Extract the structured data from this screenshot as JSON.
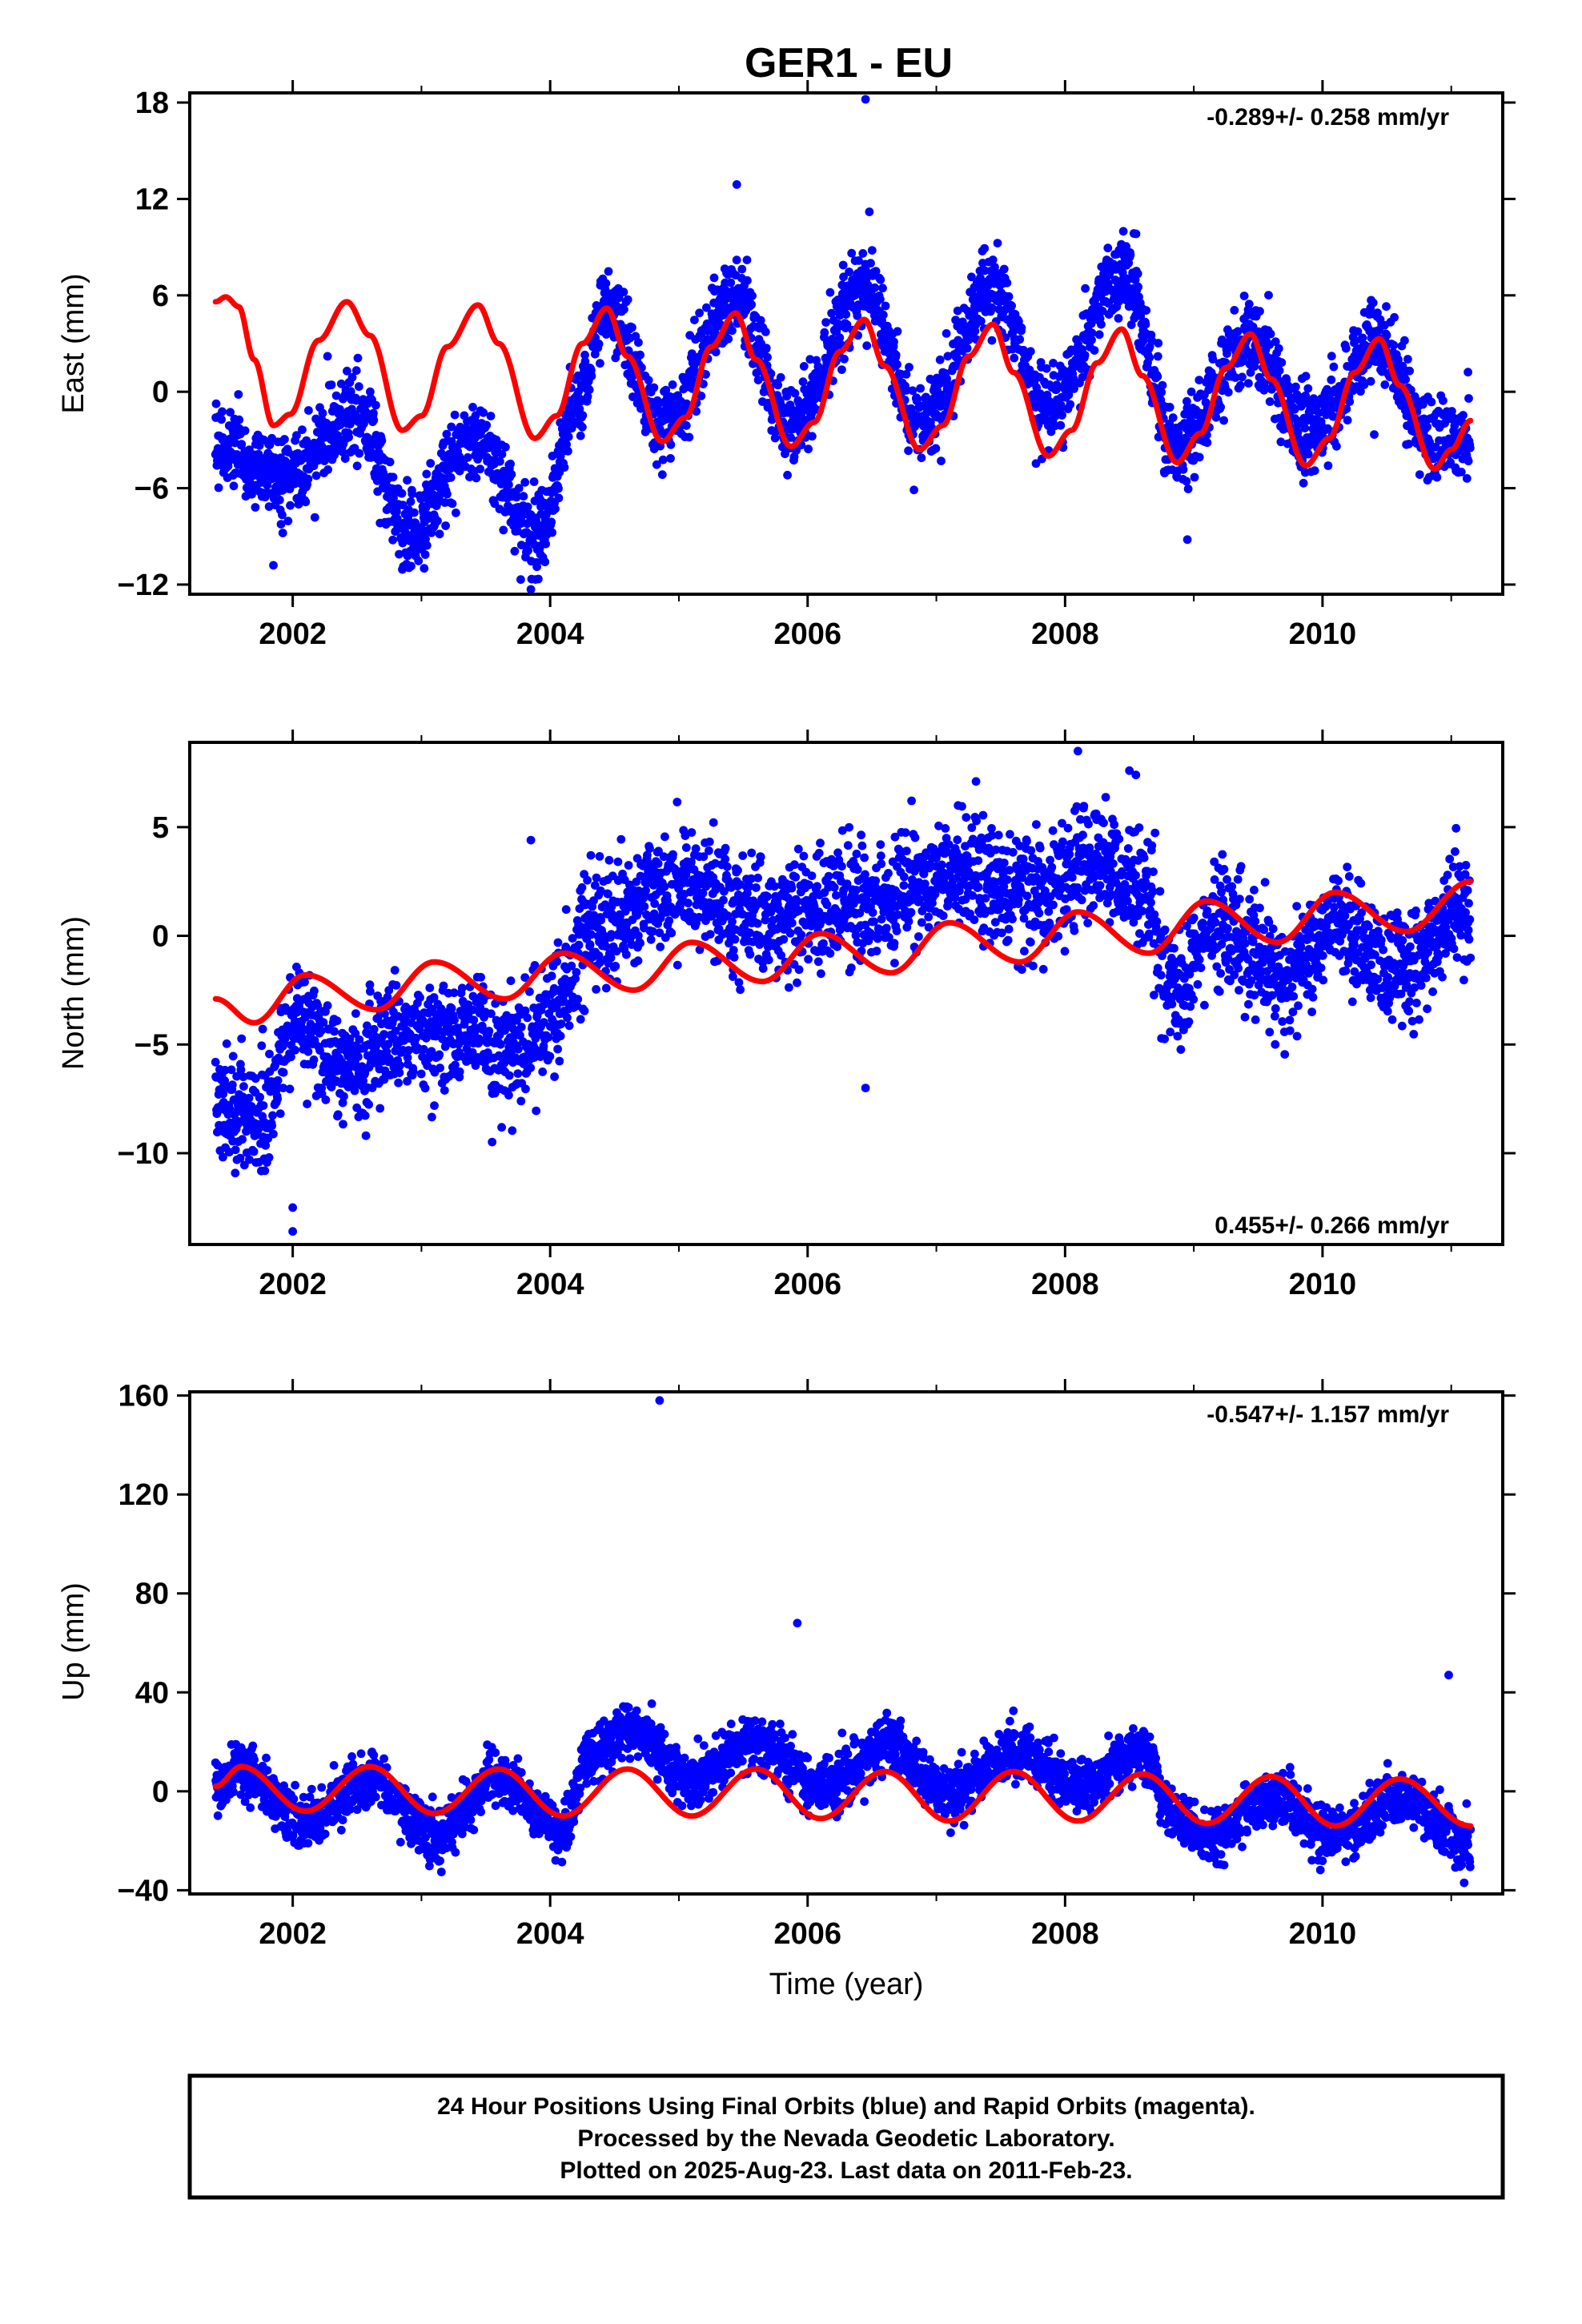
{
  "figure": {
    "title": "GER1 - EU",
    "footer": [
      "24 Hour Positions Using Final Orbits (blue) and Rapid Orbits (magenta).",
      "Processed by the Nevada Geodetic Laboratory.",
      "Plotted on 2025-Aug-23. Last data on 2011-Feb-23."
    ]
  },
  "colors": {
    "points": "#0000ff",
    "model": "#ff0000",
    "axes": "#000000"
  },
  "chart_data": [
    {
      "type": "scatter",
      "component": "east",
      "ylabel": "East (mm)",
      "xlabel": "",
      "rate_label": "-0.289+/- 0.258 mm/yr",
      "rate_position": "top-right",
      "xlim": [
        2001.2,
        2011.4
      ],
      "ylim": [
        -12.6,
        18.6
      ],
      "xticks": [
        2002,
        2004,
        2006,
        2008,
        2010
      ],
      "yticks": [
        -12,
        -6,
        0,
        6,
        12,
        18
      ],
      "data_range": [
        2001.4,
        2011.15
      ],
      "model": {
        "knots": [
          [
            2001.4,
            5.6
          ],
          [
            2001.48,
            5.9
          ],
          [
            2001.58,
            5.3
          ],
          [
            2001.7,
            2.0
          ],
          [
            2001.85,
            -2.1
          ],
          [
            2001.98,
            -1.4
          ],
          [
            2002.2,
            3.2
          ],
          [
            2002.42,
            5.6
          ],
          [
            2002.6,
            3.5
          ],
          [
            2002.85,
            -2.4
          ],
          [
            2003.0,
            -1.5
          ],
          [
            2003.2,
            2.8
          ],
          [
            2003.44,
            5.4
          ],
          [
            2003.6,
            3.0
          ],
          [
            2003.88,
            -2.9
          ],
          [
            2004.05,
            -1.5
          ],
          [
            2004.25,
            3.0
          ],
          [
            2004.44,
            5.2
          ],
          [
            2004.6,
            2.2
          ],
          [
            2004.87,
            -3.1
          ],
          [
            2005.05,
            -1.6
          ],
          [
            2005.25,
            2.8
          ],
          [
            2005.44,
            4.9
          ],
          [
            2005.6,
            2.0
          ],
          [
            2005.87,
            -3.4
          ],
          [
            2006.05,
            -1.9
          ],
          [
            2006.25,
            2.5
          ],
          [
            2006.44,
            4.5
          ],
          [
            2006.6,
            1.6
          ],
          [
            2006.87,
            -3.6
          ],
          [
            2007.05,
            -2.1
          ],
          [
            2007.25,
            2.2
          ],
          [
            2007.44,
            4.2
          ],
          [
            2007.6,
            1.2
          ],
          [
            2007.87,
            -4.0
          ],
          [
            2008.05,
            -2.4
          ],
          [
            2008.25,
            1.8
          ],
          [
            2008.44,
            3.9
          ],
          [
            2008.6,
            1.0
          ],
          [
            2008.87,
            -4.4
          ],
          [
            2009.05,
            -2.6
          ],
          [
            2009.25,
            1.5
          ],
          [
            2009.44,
            3.6
          ],
          [
            2009.6,
            0.8
          ],
          [
            2009.87,
            -4.6
          ],
          [
            2010.05,
            -2.9
          ],
          [
            2010.25,
            1.2
          ],
          [
            2010.44,
            3.3
          ],
          [
            2010.6,
            0.4
          ],
          [
            2010.87,
            -4.8
          ],
          [
            2011.0,
            -3.6
          ],
          [
            2011.15,
            -1.8
          ]
        ]
      },
      "trend": {
        "knots": [
          [
            2001.4,
            -3.5
          ],
          [
            2001.9,
            -5.5
          ],
          [
            2002.5,
            -1.5
          ],
          [
            2002.9,
            -8.5
          ],
          [
            2003.4,
            -3.0
          ],
          [
            2003.9,
            -9.0
          ],
          [
            2004.2,
            -1.0
          ],
          [
            2004.44,
            5.2
          ],
          [
            2004.87,
            -2.0
          ],
          [
            2005.44,
            5.5
          ],
          [
            2005.87,
            -2.2
          ],
          [
            2006.44,
            6.5
          ],
          [
            2006.87,
            -2.0
          ],
          [
            2007.44,
            6.3
          ],
          [
            2007.87,
            -1.0
          ],
          [
            2008.44,
            7.5
          ],
          [
            2008.87,
            -3.2
          ],
          [
            2009.44,
            3.3
          ],
          [
            2009.87,
            -2.6
          ],
          [
            2010.44,
            2.8
          ],
          [
            2010.87,
            -3.3
          ],
          [
            2011.15,
            -2.6
          ]
        ],
        "scatter_sd": 1.25
      },
      "outliers": [
        [
          2006.45,
          18.2
        ],
        [
          2005.45,
          12.9
        ],
        [
          2006.48,
          11.2
        ],
        [
          2003.85,
          -12.3
        ],
        [
          2008.95,
          -9.2
        ],
        [
          2001.85,
          -10.8
        ]
      ]
    },
    {
      "type": "scatter",
      "component": "north",
      "ylabel": "North (mm)",
      "xlabel": "",
      "rate_label": "0.455+/- 0.266 mm/yr",
      "rate_position": "bottom-right",
      "xlim": [
        2001.2,
        2011.4
      ],
      "ylim": [
        -14.2,
        8.9
      ],
      "xticks": [
        2002,
        2004,
        2006,
        2008,
        2010
      ],
      "yticks": [
        -10,
        -5,
        0,
        5
      ],
      "data_range": [
        2001.4,
        2011.15
      ],
      "model": {
        "knots": [
          [
            2001.4,
            -2.9
          ],
          [
            2001.7,
            -4.0
          ],
          [
            2002.1,
            -1.8
          ],
          [
            2002.65,
            -3.4
          ],
          [
            2003.1,
            -1.2
          ],
          [
            2003.65,
            -2.9
          ],
          [
            2004.1,
            -0.8
          ],
          [
            2004.65,
            -2.5
          ],
          [
            2005.1,
            -0.3
          ],
          [
            2005.65,
            -2.1
          ],
          [
            2006.1,
            0.1
          ],
          [
            2006.65,
            -1.7
          ],
          [
            2007.1,
            0.6
          ],
          [
            2007.65,
            -1.2
          ],
          [
            2008.1,
            1.1
          ],
          [
            2008.65,
            -0.8
          ],
          [
            2009.1,
            1.6
          ],
          [
            2009.65,
            -0.3
          ],
          [
            2010.1,
            2.0
          ],
          [
            2010.65,
            0.2
          ],
          [
            2011.15,
            2.5
          ]
        ]
      },
      "trend": {
        "knots": [
          [
            2001.4,
            -8.0
          ],
          [
            2001.75,
            -8.5
          ],
          [
            2002.0,
            -4.0
          ],
          [
            2002.5,
            -6.0
          ],
          [
            2002.8,
            -4.5
          ],
          [
            2003.3,
            -4.5
          ],
          [
            2003.7,
            -5.5
          ],
          [
            2004.1,
            -3.0
          ],
          [
            2004.3,
            0.5
          ],
          [
            2005.0,
            2.2
          ],
          [
            2005.7,
            1.0
          ],
          [
            2006.5,
            1.5
          ],
          [
            2007.2,
            3.0
          ],
          [
            2007.7,
            2.0
          ],
          [
            2008.2,
            3.5
          ],
          [
            2008.6,
            2.5
          ],
          [
            2008.85,
            -2.5
          ],
          [
            2009.2,
            0.5
          ],
          [
            2009.7,
            -2.0
          ],
          [
            2010.1,
            0.5
          ],
          [
            2010.6,
            -1.5
          ],
          [
            2011.15,
            1.5
          ]
        ],
        "scatter_sd": 1.3
      },
      "outliers": [
        [
          2002.0,
          -13.6
        ],
        [
          2002.0,
          -12.5
        ],
        [
          2008.1,
          8.5
        ],
        [
          2008.55,
          7.4
        ],
        [
          2006.45,
          -7.0
        ],
        [
          2003.85,
          4.4
        ],
        [
          2008.5,
          7.6
        ]
      ]
    },
    {
      "type": "scatter",
      "component": "up",
      "ylabel": "Up (mm)",
      "xlabel": "Time (year)",
      "rate_label": "-0.547+/- 1.157 mm/yr",
      "rate_position": "top-right",
      "xlim": [
        2001.2,
        2011.4
      ],
      "ylim": [
        -41.5,
        161.5
      ],
      "xticks": [
        2002,
        2004,
        2006,
        2008,
        2010
      ],
      "yticks": [
        -40,
        0,
        40,
        80,
        120,
        160
      ],
      "data_range": [
        2001.4,
        2011.15
      ],
      "model": {
        "knots": [
          [
            2001.4,
            2.0
          ],
          [
            2001.6,
            10.0
          ],
          [
            2002.1,
            -8.0
          ],
          [
            2002.6,
            10.0
          ],
          [
            2003.1,
            -9.0
          ],
          [
            2003.6,
            9.0
          ],
          [
            2004.1,
            -10.0
          ],
          [
            2004.6,
            9.0
          ],
          [
            2005.1,
            -10.0
          ],
          [
            2005.6,
            9.0
          ],
          [
            2006.1,
            -11.0
          ],
          [
            2006.6,
            8.0
          ],
          [
            2007.1,
            -12.0
          ],
          [
            2007.6,
            8.0
          ],
          [
            2008.1,
            -12.0
          ],
          [
            2008.6,
            7.0
          ],
          [
            2009.1,
            -13.0
          ],
          [
            2009.6,
            6.0
          ],
          [
            2010.1,
            -14.0
          ],
          [
            2010.6,
            5.0
          ],
          [
            2011.15,
            -14.0
          ]
        ]
      },
      "trend": {
        "knots": [
          [
            2001.4,
            0.0
          ],
          [
            2001.6,
            8.0
          ],
          [
            2002.1,
            -12.0
          ],
          [
            2002.6,
            6.0
          ],
          [
            2003.1,
            -18.0
          ],
          [
            2003.6,
            6.0
          ],
          [
            2004.1,
            -16.0
          ],
          [
            2004.3,
            15.0
          ],
          [
            2004.6,
            25.0
          ],
          [
            2005.1,
            5.0
          ],
          [
            2005.6,
            20.0
          ],
          [
            2006.1,
            2.0
          ],
          [
            2006.6,
            18.0
          ],
          [
            2007.1,
            0.0
          ],
          [
            2007.6,
            16.0
          ],
          [
            2008.1,
            2.0
          ],
          [
            2008.6,
            16.0
          ],
          [
            2008.85,
            -10.0
          ],
          [
            2009.1,
            -20.0
          ],
          [
            2009.6,
            -2.0
          ],
          [
            2010.1,
            -18.0
          ],
          [
            2010.6,
            -2.0
          ],
          [
            2011.15,
            -22.0
          ]
        ],
        "scatter_sd": 5.5
      },
      "outliers": [
        [
          2004.85,
          158.0
        ],
        [
          2005.92,
          68.0
        ],
        [
          2010.98,
          47.0
        ],
        [
          2011.1,
          -37.0
        ]
      ]
    }
  ]
}
